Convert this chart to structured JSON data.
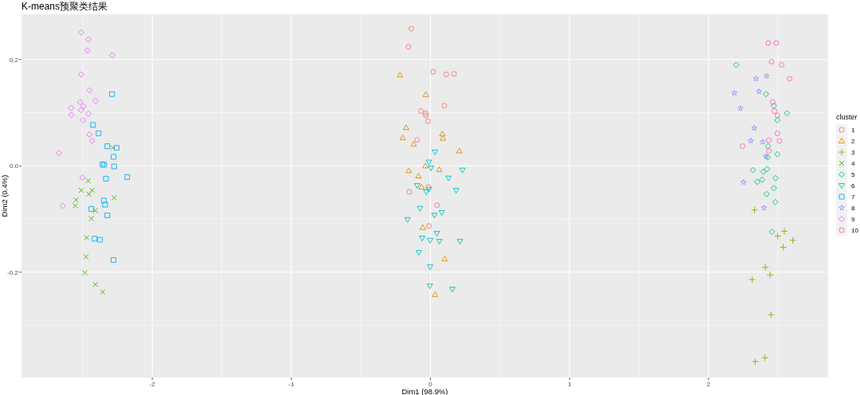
{
  "chart_data": {
    "type": "scatter",
    "title": "K-means预聚类结果",
    "xlabel": "Dim1 (98.9%)",
    "ylabel": "Dim2 (0.4%)",
    "legend_title": "cluster",
    "legend": "right",
    "grid": true,
    "xlim": [
      -2.94,
      2.86
    ],
    "ylim": [
      -0.398,
      0.285
    ],
    "xticks": [
      -2,
      -1,
      0,
      1,
      2
    ],
    "yticks": [
      {
        "value": -0.2,
        "label": "-0.2"
      },
      {
        "value": 0,
        "label": "0.0"
      },
      {
        "value": 0.2,
        "label": "0.2"
      }
    ],
    "series": [
      {
        "name": "1",
        "color": "#F8766D",
        "marker": "circle",
        "x": [
          -0.137,
          -0.158,
          0.019,
          0.114,
          0.17,
          0.101,
          -0.069,
          -0.034,
          -0.033,
          -0.017,
          -0.095,
          -0.015,
          -0.151,
          0.048,
          -0.011
        ],
        "values": [
          0.258,
          0.224,
          0.177,
          0.172,
          0.173,
          0.113,
          0.103,
          0.099,
          0.095,
          0.084,
          0.049,
          -0.04,
          -0.049,
          -0.074,
          -0.113
        ]
      },
      {
        "name": "2",
        "color": "#D89000",
        "marker": "triangle",
        "x": [
          -0.219,
          -0.033,
          -0.174,
          0.086,
          -0.199,
          0.09,
          -0.12,
          0.208,
          -0.036,
          -0.156,
          0.065,
          -0.086,
          -0.063,
          -0.055,
          0.103,
          0.034
        ],
        "values": [
          0.171,
          0.134,
          0.072,
          0.06,
          0.053,
          0.052,
          0.041,
          0.028,
          0.0,
          -0.009,
          -0.007,
          -0.019,
          -0.04,
          -0.116,
          -0.175,
          -0.242
        ]
      },
      {
        "name": "3",
        "color": "#A3A500",
        "marker": "plus",
        "x": [
          2.331,
          2.545,
          2.497,
          2.606,
          2.537,
          2.409,
          2.443,
          2.314,
          2.449,
          2.405,
          2.336
        ],
        "values": [
          -0.083,
          -0.123,
          -0.132,
          -0.14,
          -0.153,
          -0.191,
          -0.205,
          -0.214,
          -0.28,
          -0.361,
          -0.368
        ]
      },
      {
        "name": "4",
        "color": "#39B600",
        "marker": "x",
        "x": [
          -2.283,
          -2.461,
          -2.51,
          -2.432,
          -2.455,
          -2.548,
          -2.274,
          -2.554,
          -2.409,
          -2.438,
          -2.472,
          -2.476,
          -2.485,
          -2.409,
          -2.356
        ],
        "values": [
          0.034,
          -0.028,
          -0.046,
          -0.046,
          -0.053,
          -0.064,
          -0.06,
          -0.075,
          -0.084,
          -0.099,
          -0.135,
          -0.171,
          -0.201,
          -0.223,
          -0.237
        ]
      },
      {
        "name": "5",
        "color": "#00BF7D",
        "marker": "diamond",
        "x": [
          2.199,
          2.413,
          2.47,
          2.564,
          2.495,
          2.428,
          2.495,
          2.425,
          2.319,
          2.394,
          2.421,
          2.482,
          2.35,
          2.385,
          2.47,
          2.417,
          2.48,
          2.455
        ],
        "values": [
          0.19,
          0.135,
          0.113,
          0.099,
          0.086,
          0.037,
          0.022,
          0.016,
          -0.008,
          -0.011,
          -0.006,
          -0.023,
          -0.03,
          -0.026,
          -0.042,
          -0.053,
          -0.068,
          -0.124
        ]
      },
      {
        "name": "6",
        "color": "#00BFC4",
        "marker": "triangle-down",
        "x": [
          0.033,
          -0.011,
          0.004,
          0.231,
          0.13,
          0.185,
          -0.095,
          -0.029,
          -0.01,
          -0.074,
          0.029,
          0.082,
          -0.164,
          0.046,
          -0.059,
          -0.002,
          0.065,
          0.213,
          -0.084,
          -0.002,
          -0.004,
          0.158
        ],
        "values": [
          0.026,
          0.007,
          -0.004,
          -0.008,
          -0.023,
          -0.046,
          -0.037,
          -0.049,
          -0.044,
          -0.08,
          -0.093,
          -0.088,
          -0.101,
          -0.127,
          -0.136,
          -0.14,
          -0.142,
          -0.142,
          -0.163,
          -0.19,
          -0.226,
          -0.232
        ]
      },
      {
        "name": "7",
        "color": "#00B0F6",
        "marker": "square",
        "x": [
          -2.289,
          -2.426,
          -2.386,
          -2.323,
          -2.256,
          -2.278,
          -2.358,
          -2.346,
          -2.274,
          -2.18,
          -2.333,
          -2.348,
          -2.339,
          -2.438,
          -2.323,
          -2.415,
          -2.375,
          -2.278
        ],
        "values": [
          0.135,
          0.077,
          0.061,
          0.037,
          0.034,
          0.017,
          0.003,
          0.002,
          -0.001,
          -0.021,
          -0.024,
          -0.065,
          -0.073,
          -0.081,
          -0.093,
          -0.137,
          -0.139,
          -0.177
        ]
      },
      {
        "name": "8",
        "color": "#9590FF",
        "marker": "star",
        "x": [
          2.342,
          2.417,
          2.186,
          2.363,
          2.23,
          2.329,
          2.304,
          2.39,
          2.413,
          2.251,
          2.398
        ],
        "values": [
          0.164,
          0.169,
          0.137,
          0.14,
          0.108,
          0.071,
          0.047,
          0.045,
          0.018,
          -0.031,
          -0.079
        ]
      },
      {
        "name": "9",
        "color": "#E76BF3",
        "marker": "diamond",
        "x": [
          -2.51,
          -2.459,
          -2.465,
          -2.287,
          -2.51,
          -2.451,
          -2.407,
          -2.518,
          -2.583,
          -2.512,
          -2.495,
          -2.581,
          -2.459,
          -2.499,
          -2.451,
          -2.432,
          -2.671,
          -2.502,
          -2.644
        ],
        "values": [
          0.251,
          0.238,
          0.217,
          0.208,
          0.172,
          0.142,
          0.122,
          0.12,
          0.109,
          0.105,
          0.112,
          0.096,
          0.098,
          0.086,
          0.059,
          0.047,
          0.024,
          -0.022,
          -0.075
        ]
      },
      {
        "name": "10",
        "color": "#FF62BC",
        "marker": "circle",
        "x": [
          2.43,
          2.487,
          2.453,
          2.525,
          2.583,
          2.462,
          2.474,
          2.495,
          2.495,
          2.434,
          2.51,
          2.245,
          2.434
        ],
        "values": [
          0.231,
          0.231,
          0.196,
          0.19,
          0.164,
          0.12,
          0.103,
          0.095,
          0.061,
          0.048,
          0.047,
          0.037,
          0.028
        ]
      }
    ]
  }
}
